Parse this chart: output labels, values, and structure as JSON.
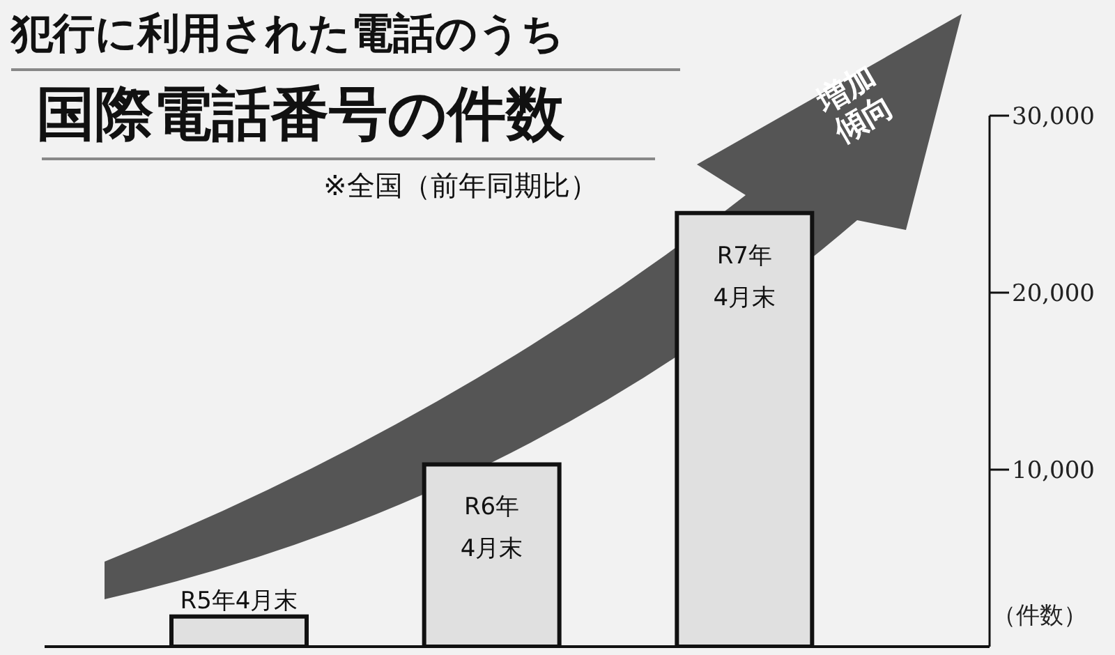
{
  "chart_data": {
    "type": "bar",
    "title": "国際電話番号の件数",
    "subtitle": "犯行に利用された電話のうち",
    "ylabel": "（件数）",
    "annotations": [
      "※全国（前年同期比）",
      "増加傾向"
    ],
    "categories": [
      "R5年4月末",
      "R6年4月末",
      "R7年4月末"
    ],
    "values": [
      1700,
      10300,
      24500
    ],
    "color": "#e0e0e0",
    "ylim": [
      0,
      30000
    ],
    "yticks": [
      {
        "value": 10000,
        "label": "10,000"
      },
      {
        "value": 20000,
        "label": "20,000"
      },
      {
        "value": 30000,
        "label": "30,000"
      }
    ],
    "grid": false,
    "legend": false
  }
}
